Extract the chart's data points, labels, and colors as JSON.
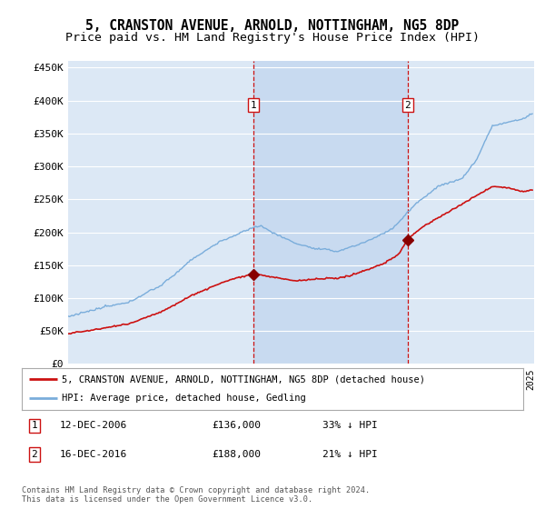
{
  "title": "5, CRANSTON AVENUE, ARNOLD, NOTTINGHAM, NG5 8DP",
  "subtitle": "Price paid vs. HM Land Registry's House Price Index (HPI)",
  "ylim": [
    0,
    460000
  ],
  "yticks": [
    0,
    50000,
    100000,
    150000,
    200000,
    250000,
    300000,
    350000,
    400000,
    450000
  ],
  "ytick_labels": [
    "£0",
    "£50K",
    "£100K",
    "£150K",
    "£200K",
    "£250K",
    "£300K",
    "£350K",
    "£400K",
    "£450K"
  ],
  "background_color": "#ffffff",
  "plot_bg_color": "#dce8f5",
  "plot_bg_highlight": "#c8daf0",
  "grid_color": "#ffffff",
  "hpi_color": "#7aaddb",
  "price_color": "#cc1111",
  "sale1_year": 2006.96,
  "sale1_price": 136000,
  "sale2_year": 2016.96,
  "sale2_price": 188000,
  "legend_line1": "5, CRANSTON AVENUE, ARNOLD, NOTTINGHAM, NG5 8DP (detached house)",
  "legend_line2": "HPI: Average price, detached house, Gedling",
  "footer": "Contains HM Land Registry data © Crown copyright and database right 2024.\nThis data is licensed under the Open Government Licence v3.0.",
  "title_fontsize": 10.5,
  "subtitle_fontsize": 9.5,
  "tick_fontsize": 8
}
